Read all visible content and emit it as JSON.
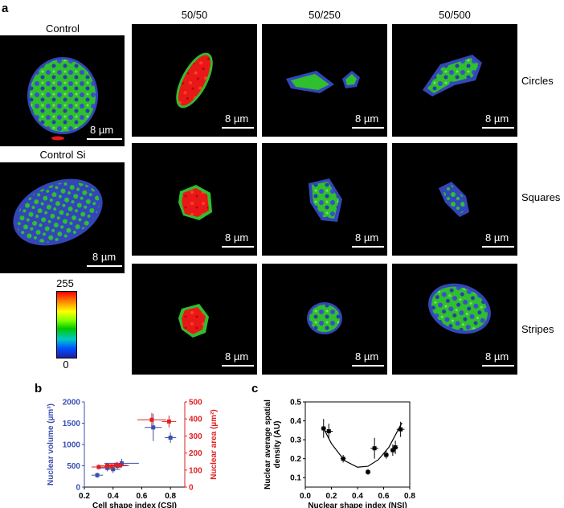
{
  "panel_letters": {
    "a": "a",
    "b": "b",
    "c": "c"
  },
  "left_tiles": [
    {
      "title": "Control",
      "scale": "8 µm"
    },
    {
      "title": "Control Si",
      "scale": "8 µm"
    }
  ],
  "column_labels": [
    "50/50",
    "50/250",
    "50/500"
  ],
  "row_labels": [
    "Circles",
    "Squares",
    "Stripes"
  ],
  "grid_scale": "8 µm",
  "colorbar": {
    "max": "255",
    "min": "0"
  },
  "colors": {
    "blue_axis": "#3b4fb0",
    "red_axis": "#e02020",
    "black": "#000000"
  },
  "chart_data": [
    {
      "type": "scatter",
      "xlabel": "Cell shape index (CSI)",
      "ylabel_left": "Nuclear volume (µm³)",
      "ylabel_right": "Nuclear area (µm²)",
      "xlim": [
        0.2,
        0.9
      ],
      "xticks": [
        "0.2",
        "0.4",
        "0.6",
        "0.8"
      ],
      "ylim_left": [
        0,
        2000
      ],
      "yticks_left": [
        "0",
        "500",
        "1000",
        "1500",
        "2000"
      ],
      "ylim_right": [
        0,
        500
      ],
      "yticks_right": [
        "0",
        "100",
        "200",
        "300",
        "400",
        "500"
      ],
      "series": [
        {
          "axis": "left",
          "color": "#3b4fb0",
          "points": [
            {
              "x": 0.29,
              "y": 280,
              "xerr": 0.04,
              "yerr": 60
            },
            {
              "x": 0.36,
              "y": 450,
              "xerr": 0.05,
              "yerr": 80
            },
            {
              "x": 0.4,
              "y": 420,
              "xerr": 0.05,
              "yerr": 90
            },
            {
              "x": 0.43,
              "y": 500,
              "xerr": 0.08,
              "yerr": 90
            },
            {
              "x": 0.46,
              "y": 560,
              "xerr": 0.12,
              "yerr": 100
            },
            {
              "x": 0.68,
              "y": 1400,
              "xerr": 0.06,
              "yerr": 320
            },
            {
              "x": 0.8,
              "y": 1160,
              "xerr": 0.04,
              "yerr": 120
            }
          ]
        },
        {
          "axis": "right",
          "color": "#e02020",
          "points": [
            {
              "x": 0.3,
              "y": 118,
              "xerr": 0.05,
              "yerr": 15
            },
            {
              "x": 0.36,
              "y": 125,
              "xerr": 0.05,
              "yerr": 15
            },
            {
              "x": 0.39,
              "y": 122,
              "xerr": 0.05,
              "yerr": 15
            },
            {
              "x": 0.42,
              "y": 130,
              "xerr": 0.05,
              "yerr": 15
            },
            {
              "x": 0.45,
              "y": 128,
              "xerr": 0.05,
              "yerr": 15
            },
            {
              "x": 0.67,
              "y": 395,
              "xerr": 0.1,
              "yerr": 40
            },
            {
              "x": 0.79,
              "y": 385,
              "xerr": 0.05,
              "yerr": 35
            }
          ]
        }
      ]
    },
    {
      "type": "scatter",
      "xlabel": "Nuclear shape index (NSI)",
      "ylabel": "Nuclear average spatial density (AU)",
      "xlim": [
        0,
        0.8
      ],
      "xticks": [
        "0.0",
        "0.2",
        "0.4",
        "0.6",
        "0.8"
      ],
      "ylim": [
        0.05,
        0.5
      ],
      "yticks": [
        "0.1",
        "0.2",
        "0.3",
        "0.4",
        "0.5"
      ],
      "trendline": "quadratic",
      "series": [
        {
          "color": "#000000",
          "points": [
            {
              "x": 0.14,
              "y": 0.36,
              "xerr": 0.02,
              "yerr": 0.05
            },
            {
              "x": 0.18,
              "y": 0.345,
              "xerr": 0.03,
              "yerr": 0.04
            },
            {
              "x": 0.29,
              "y": 0.2,
              "xerr": 0.02,
              "yerr": 0.02
            },
            {
              "x": 0.48,
              "y": 0.13,
              "xerr": 0.02,
              "yerr": 0.015
            },
            {
              "x": 0.53,
              "y": 0.255,
              "xerr": 0.03,
              "yerr": 0.055
            },
            {
              "x": 0.62,
              "y": 0.22,
              "xerr": 0.02,
              "yerr": 0.02
            },
            {
              "x": 0.67,
              "y": 0.245,
              "xerr": 0.02,
              "yerr": 0.03
            },
            {
              "x": 0.69,
              "y": 0.26,
              "xerr": 0.02,
              "yerr": 0.035
            },
            {
              "x": 0.73,
              "y": 0.355,
              "xerr": 0.03,
              "yerr": 0.04
            }
          ],
          "curve": [
            {
              "x": 0.14,
              "y": 0.36
            },
            {
              "x": 0.2,
              "y": 0.28
            },
            {
              "x": 0.3,
              "y": 0.19
            },
            {
              "x": 0.4,
              "y": 0.155
            },
            {
              "x": 0.48,
              "y": 0.16
            },
            {
              "x": 0.56,
              "y": 0.195
            },
            {
              "x": 0.64,
              "y": 0.26
            },
            {
              "x": 0.74,
              "y": 0.39
            }
          ]
        }
      ]
    }
  ]
}
